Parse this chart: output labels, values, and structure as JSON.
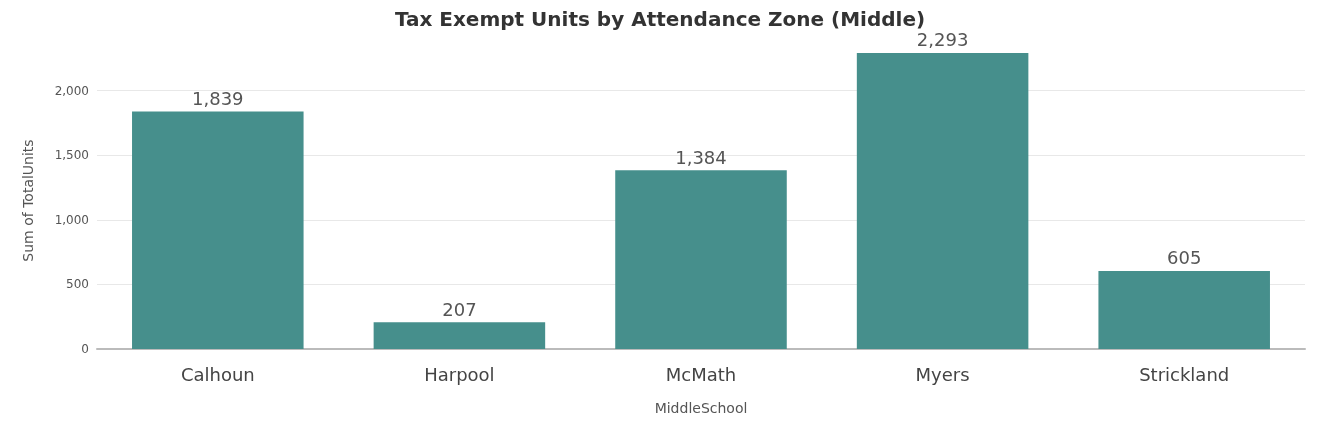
{
  "chart_data": {
    "type": "bar",
    "title": "Tax Exempt Units by Attendance Zone (Middle)",
    "xlabel": "MiddleSchool",
    "ylabel": "Sum of TotalUnits",
    "categories": [
      "Calhoun",
      "Harpool",
      "McMath",
      "Myers",
      "Strickland"
    ],
    "values": [
      1839,
      207,
      1384,
      2293,
      605
    ],
    "value_labels": [
      "1,839",
      "207",
      "1,384",
      "2,293",
      "605"
    ],
    "color": "#468f8c",
    "ylim": [
      0,
      2300
    ],
    "yticks": [
      0,
      {
        "value": 500,
        "label": "500"
      },
      {
        "value": 1000,
        "label": "1,000"
      },
      {
        "value": 1500,
        "label": "1,500"
      },
      {
        "value": 2000,
        "label": "2,000"
      }
    ],
    "grid": "y"
  }
}
